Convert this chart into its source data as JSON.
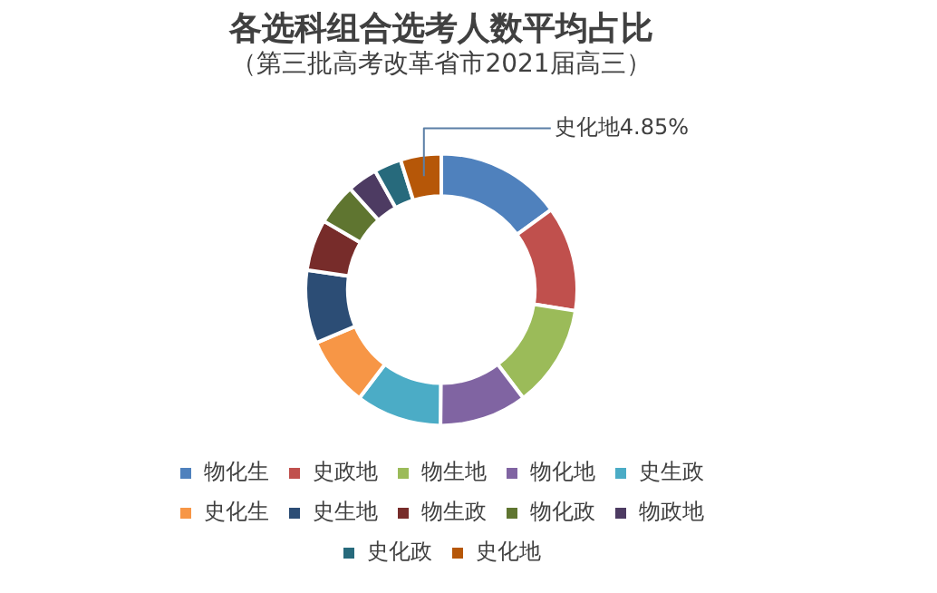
{
  "chart_data": {
    "type": "donut",
    "title": "各选科组合选考人数平均占比",
    "subtitle": "（第三批高考改革省市2021届高三）",
    "categories": [
      "物化生",
      "史政地",
      "物生地",
      "物化地",
      "史生政",
      "史化生",
      "史生地",
      "物生政",
      "物化政",
      "物政地",
      "史化政",
      "史化地"
    ],
    "values": [
      15.0,
      12.5,
      12.2,
      10.4,
      10.2,
      8.3,
      8.7,
      6.1,
      4.9,
      3.6,
      3.25,
      4.85
    ],
    "colors": [
      "#4f81bd",
      "#c0504d",
      "#9bbb59",
      "#8064a2",
      "#4bacc6",
      "#f79646",
      "#2c4d75",
      "#772c2a",
      "#5f7530",
      "#4d3b62",
      "#276a7c",
      "#b65708"
    ],
    "value_labels": [
      null,
      null,
      null,
      null,
      null,
      null,
      null,
      null,
      null,
      null,
      null,
      "史化地4.85%"
    ],
    "legend": "bottom"
  }
}
